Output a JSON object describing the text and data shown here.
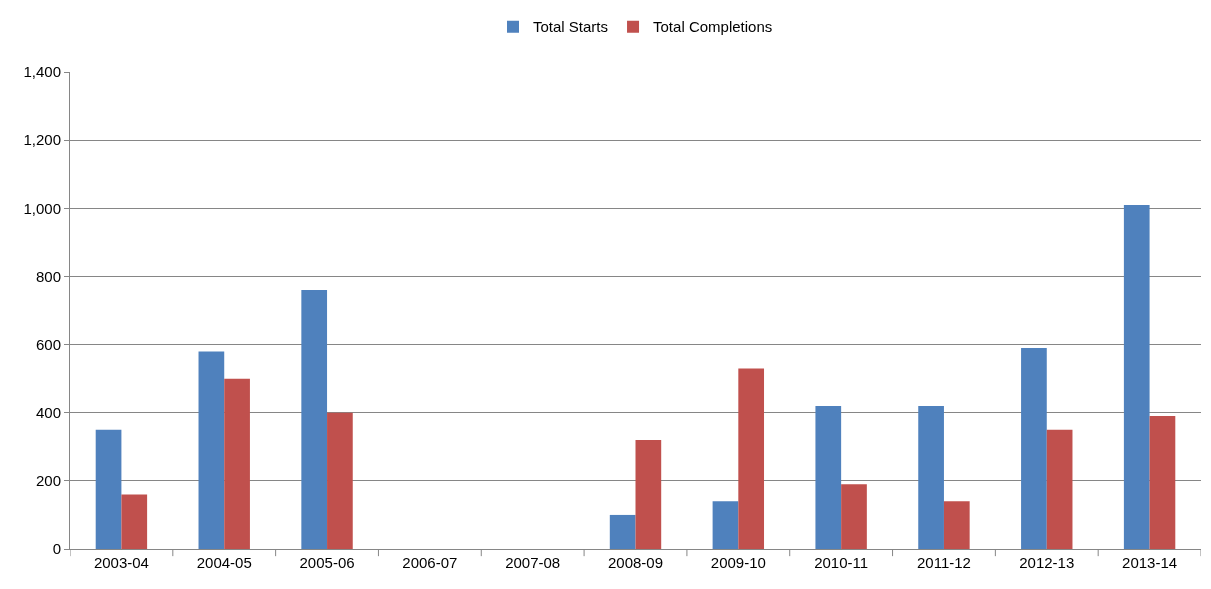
{
  "chart_data": {
    "type": "bar",
    "categories": [
      "2003-04",
      "2004-05",
      "2005-06",
      "2006-07",
      "2007-08",
      "2008-09",
      "2009-10",
      "2010-11",
      "2011-12",
      "2012-13",
      "2013-14"
    ],
    "series": [
      {
        "name": "Total Starts",
        "color": "#4f81bd",
        "values": [
          350,
          580,
          760,
          null,
          null,
          100,
          140,
          420,
          420,
          590,
          1010
        ]
      },
      {
        "name": "Total Completions",
        "color": "#c0504d",
        "values": [
          160,
          500,
          400,
          null,
          null,
          320,
          530,
          190,
          140,
          350,
          390
        ]
      }
    ],
    "ylim": [
      0,
      1400
    ],
    "yticks": [
      0,
      {
        "value": 200,
        "label": "200"
      },
      {
        "value": 400,
        "label": "400"
      },
      {
        "value": 600,
        "label": "600"
      },
      {
        "value": 800,
        "label": "800"
      },
      {
        "value": 1000,
        "label": "1,000"
      },
      {
        "value": 1200,
        "label": "1,200"
      },
      {
        "value": 1400,
        "label": "1,400"
      }
    ],
    "grid": "y",
    "legend": "top"
  }
}
